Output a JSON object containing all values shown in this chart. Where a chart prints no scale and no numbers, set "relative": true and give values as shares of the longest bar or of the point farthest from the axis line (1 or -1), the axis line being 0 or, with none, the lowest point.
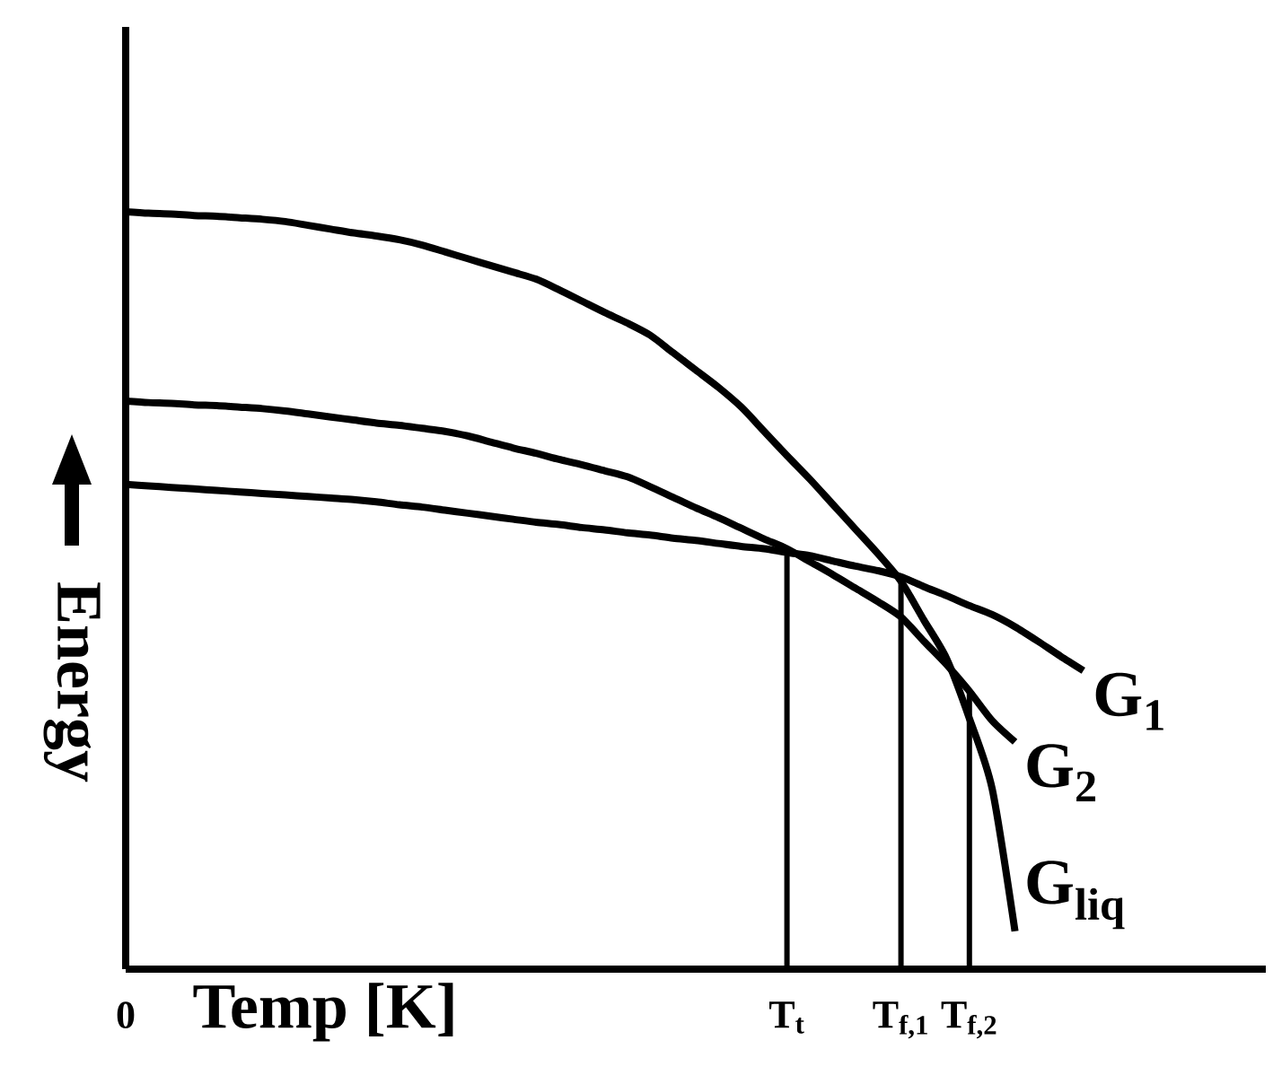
{
  "chart_data": {
    "type": "line",
    "relative": true,
    "xlabel": "Temp [K]",
    "ylabel": "Energy",
    "categories": [
      "0",
      null,
      null,
      null,
      null,
      null,
      null,
      null,
      null,
      null,
      null,
      null,
      null,
      null,
      null,
      null,
      null,
      null,
      null,
      null,
      null,
      null,
      null,
      null,
      null,
      null,
      null,
      null,
      null,
      "T$_{t}$",
      null,
      null,
      null,
      null,
      "T$_{f,1}$",
      null,
      null,
      "T$_{f,2}$",
      null,
      null,
      null,
      null,
      null,
      null,
      null,
      null,
      null,
      null,
      null,
      null,
      null
    ],
    "ref_lines": [
      {
        "axis": "x",
        "value": "T$_{t}$"
      },
      {
        "axis": "x",
        "value": "T$_{f,1}$"
      },
      {
        "axis": "x",
        "value": "T$_{f,2}$"
      }
    ],
    "series": [
      {
        "name": "G$_{1}$",
        "color": "#000000",
        "values": [
          0.64,
          0.638,
          0.636,
          0.634,
          0.632,
          0.63,
          0.628,
          0.626,
          0.624,
          0.622,
          0.62,
          0.617,
          0.613,
          0.61,
          0.606,
          0.602,
          0.598,
          0.594,
          0.59,
          0.587,
          0.583,
          0.58,
          0.576,
          0.573,
          0.569,
          0.566,
          0.562,
          0.558,
          0.555,
          0.55,
          0.546,
          0.539,
          0.532,
          0.526,
          0.518,
          0.505,
          0.493,
          0.48,
          0.468,
          0.452,
          0.433,
          0.413,
          0.394,
          null,
          null,
          null,
          null,
          null,
          null,
          null,
          null
        ]
      },
      {
        "name": "G$_{2}$",
        "color": "#000000",
        "values": [
          0.75,
          0.748,
          0.747,
          0.745,
          0.744,
          0.742,
          0.74,
          0.737,
          0.733,
          0.729,
          0.725,
          0.721,
          0.718,
          0.714,
          0.71,
          0.704,
          0.696,
          0.688,
          0.681,
          0.673,
          0.666,
          0.658,
          0.65,
          0.637,
          0.623,
          0.609,
          0.596,
          0.582,
          0.568,
          0.555,
          0.538,
          0.521,
          0.503,
          0.485,
          0.465,
          0.433,
          0.402,
          0.367,
          0.328,
          0.3,
          null,
          null,
          null,
          null,
          null,
          null,
          null,
          null,
          null,
          null,
          null
        ]
      },
      {
        "name": "G$_{liq}$",
        "color": "#000000",
        "values": [
          1.0,
          0.998,
          0.997,
          0.995,
          0.994,
          0.992,
          0.99,
          0.987,
          0.982,
          0.977,
          0.972,
          0.968,
          0.963,
          0.956,
          0.947,
          0.938,
          0.929,
          0.92,
          0.911,
          0.897,
          0.882,
          0.867,
          0.853,
          0.837,
          0.814,
          0.791,
          0.768,
          0.742,
          0.71,
          0.678,
          0.647,
          0.614,
          0.581,
          0.548,
          0.512,
          0.461,
          0.41,
          0.331,
          0.238,
          0.05,
          null,
          null,
          null,
          null,
          null,
          null,
          null,
          null,
          null,
          null,
          null
        ]
      }
    ]
  }
}
